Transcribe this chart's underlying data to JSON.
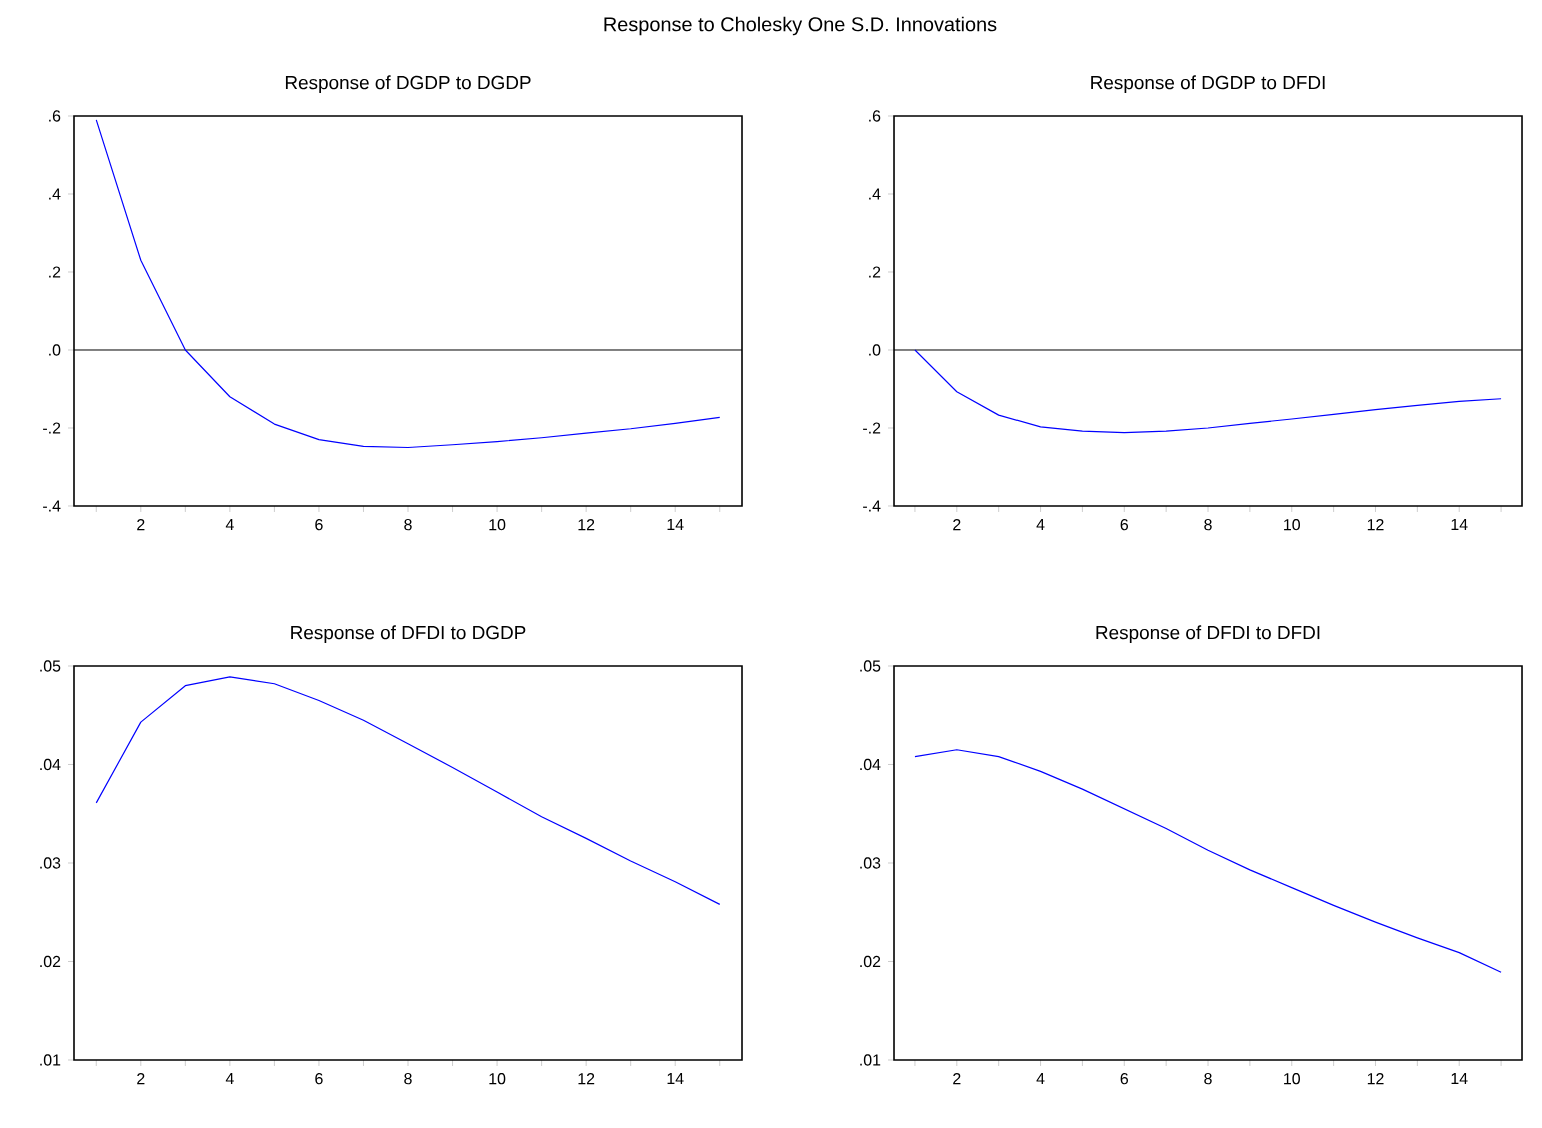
{
  "chart_data": [
    {
      "type": "line",
      "title": "Response of DGDP to DGDP",
      "annotations": [
        "Response to Cholesky One S.D. Innovations"
      ],
      "x": [
        1,
        2,
        3,
        4,
        5,
        6,
        7,
        8,
        9,
        10,
        11,
        12,
        13,
        14,
        15
      ],
      "series": [
        {
          "color": "#0000ff",
          "values": [
            0.59,
            0.23,
            0.0,
            -0.12,
            -0.19,
            -0.23,
            -0.247,
            -0.25,
            -0.243,
            -0.235,
            -0.225,
            -0.213,
            -0.202,
            -0.188,
            -0.173
          ]
        }
      ],
      "xlim": [
        0.5,
        15.5
      ],
      "ylim": [
        -0.4,
        0.6
      ],
      "xticks": [
        {
          "value": 1,
          "label": null
        },
        2,
        {
          "value": 3,
          "label": null
        },
        4,
        {
          "value": 5,
          "label": null
        },
        6,
        {
          "value": 7,
          "label": null
        },
        8,
        {
          "value": 9,
          "label": null
        },
        10,
        {
          "value": 11,
          "label": null
        },
        12,
        {
          "value": 13,
          "label": null
        },
        14,
        {
          "value": 15,
          "label": null
        }
      ],
      "yticks": [
        {
          "value": -0.4,
          "label": "-.4"
        },
        {
          "value": -0.2,
          "label": "-.2"
        },
        {
          "value": 0,
          "label": ".0"
        },
        {
          "value": 0.2,
          "label": ".2"
        },
        {
          "value": 0.4,
          "label": ".4"
        },
        {
          "value": 0.6,
          "label": ".6"
        }
      ],
      "ref_lines": [
        {
          "axis": "y",
          "value": 0,
          "color": "#000000"
        }
      ]
    },
    {
      "type": "line",
      "title": "Response of DGDP to DFDI",
      "x": [
        1,
        2,
        3,
        4,
        5,
        6,
        7,
        8,
        9,
        10,
        11,
        12,
        13,
        14,
        15
      ],
      "series": [
        {
          "color": "#0000ff",
          "values": [
            0.0,
            -0.107,
            -0.167,
            -0.197,
            -0.208,
            -0.212,
            -0.208,
            -0.2,
            -0.188,
            -0.177,
            -0.165,
            -0.153,
            -0.142,
            -0.132,
            -0.125
          ]
        }
      ],
      "xlim": [
        0.5,
        15.5
      ],
      "ylim": [
        -0.4,
        0.6
      ],
      "xticks": [
        {
          "value": 1,
          "label": null
        },
        2,
        {
          "value": 3,
          "label": null
        },
        4,
        {
          "value": 5,
          "label": null
        },
        6,
        {
          "value": 7,
          "label": null
        },
        8,
        {
          "value": 9,
          "label": null
        },
        10,
        {
          "value": 11,
          "label": null
        },
        12,
        {
          "value": 13,
          "label": null
        },
        14,
        {
          "value": 15,
          "label": null
        }
      ],
      "yticks": [
        {
          "value": -0.4,
          "label": "-.4"
        },
        {
          "value": -0.2,
          "label": "-.2"
        },
        {
          "value": 0,
          "label": ".0"
        },
        {
          "value": 0.2,
          "label": ".2"
        },
        {
          "value": 0.4,
          "label": ".4"
        },
        {
          "value": 0.6,
          "label": ".6"
        }
      ],
      "ref_lines": [
        {
          "axis": "y",
          "value": 0,
          "color": "#000000"
        }
      ]
    },
    {
      "type": "line",
      "title": "Response of DFDI to DGDP",
      "x": [
        1,
        2,
        3,
        4,
        5,
        6,
        7,
        8,
        9,
        10,
        11,
        12,
        13,
        14,
        15
      ],
      "series": [
        {
          "color": "#0000ff",
          "values": [
            0.0361,
            0.0443,
            0.048,
            0.0489,
            0.0482,
            0.0465,
            0.0445,
            0.0421,
            0.0397,
            0.0372,
            0.0347,
            0.0325,
            0.0302,
            0.0281,
            0.0258
          ]
        }
      ],
      "xlim": [
        0.5,
        15.5
      ],
      "ylim": [
        0.01,
        0.05
      ],
      "xticks": [
        {
          "value": 1,
          "label": null
        },
        2,
        {
          "value": 3,
          "label": null
        },
        4,
        {
          "value": 5,
          "label": null
        },
        6,
        {
          "value": 7,
          "label": null
        },
        8,
        {
          "value": 9,
          "label": null
        },
        10,
        {
          "value": 11,
          "label": null
        },
        12,
        {
          "value": 13,
          "label": null
        },
        14,
        {
          "value": 15,
          "label": null
        }
      ],
      "yticks": [
        {
          "value": 0.01,
          "label": ".01"
        },
        {
          "value": 0.02,
          "label": ".02"
        },
        {
          "value": 0.03,
          "label": ".03"
        },
        {
          "value": 0.04,
          "label": ".04"
        },
        {
          "value": 0.05,
          "label": ".05"
        }
      ]
    },
    {
      "type": "line",
      "title": "Response of DFDI to DFDI",
      "x": [
        1,
        2,
        3,
        4,
        5,
        6,
        7,
        8,
        9,
        10,
        11,
        12,
        13,
        14,
        15
      ],
      "series": [
        {
          "color": "#0000ff",
          "values": [
            0.0408,
            0.0415,
            0.0408,
            0.0393,
            0.0375,
            0.0355,
            0.0335,
            0.0313,
            0.0293,
            0.0275,
            0.0257,
            0.024,
            0.0224,
            0.0209,
            0.0189
          ]
        }
      ],
      "xlim": [
        0.5,
        15.5
      ],
      "ylim": [
        0.01,
        0.05
      ],
      "xticks": [
        {
          "value": 1,
          "label": null
        },
        2,
        {
          "value": 3,
          "label": null
        },
        4,
        {
          "value": 5,
          "label": null
        },
        6,
        {
          "value": 7,
          "label": null
        },
        8,
        {
          "value": 9,
          "label": null
        },
        10,
        {
          "value": 11,
          "label": null
        },
        12,
        {
          "value": 13,
          "label": null
        },
        14,
        {
          "value": 15,
          "label": null
        }
      ],
      "yticks": [
        {
          "value": 0.01,
          "label": ".01"
        },
        {
          "value": 0.02,
          "label": ".02"
        },
        {
          "value": 0.03,
          "label": ".03"
        },
        {
          "value": 0.04,
          "label": ".04"
        },
        {
          "value": 0.05,
          "label": ".05"
        }
      ]
    }
  ]
}
